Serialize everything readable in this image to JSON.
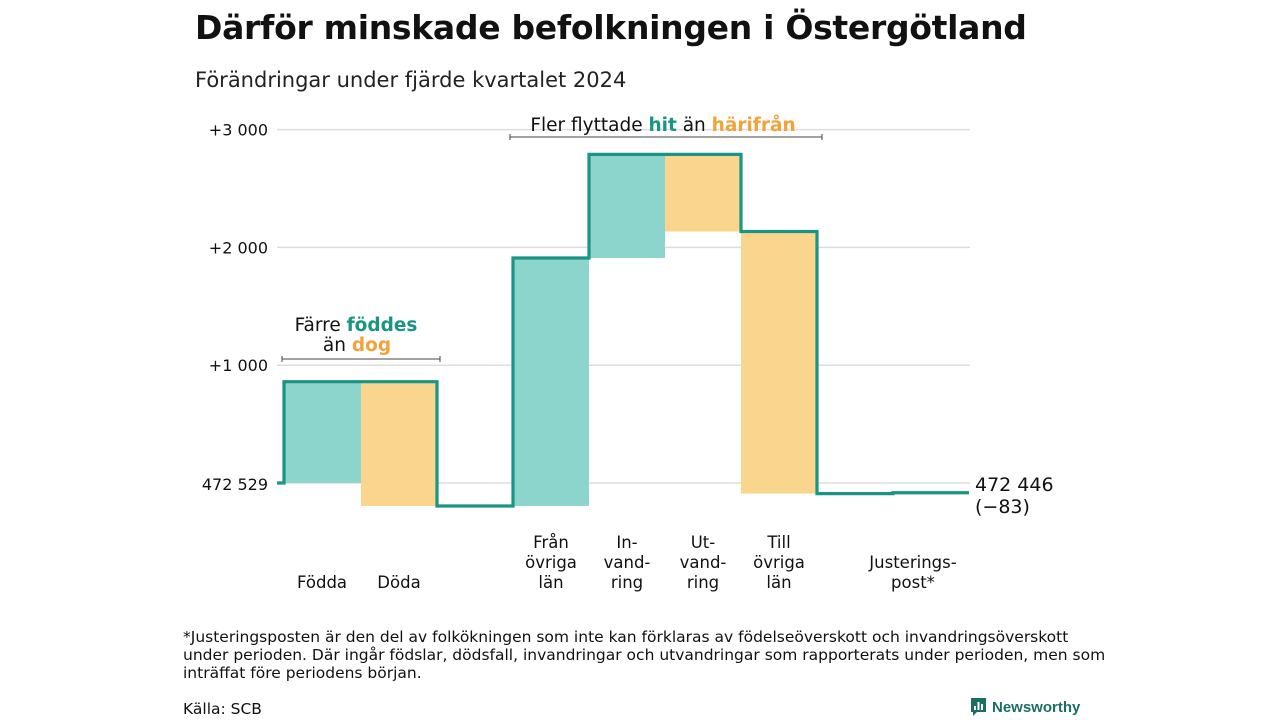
{
  "title": "Därför minskade befolkningen i Östergötland",
  "subtitle": "Förändringar under fjärde kvartalet 2024",
  "chart_data": {
    "type": "waterfall",
    "start_value": 472529,
    "start_label": "472 529",
    "end_label": "472 446",
    "end_change_label": "(−83)",
    "y_ticks": [
      {
        "value": 1000,
        "label": "+1 000"
      },
      {
        "value": 2000,
        "label": "+2 000"
      },
      {
        "value": 3000,
        "label": "+3 000"
      }
    ],
    "steps": [
      {
        "label_lines": [
          "Födda"
        ],
        "change": 860,
        "kind": "in"
      },
      {
        "label_lines": [
          "Döda"
        ],
        "change": -1055,
        "kind": "out"
      },
      {
        "label_lines": [
          "Från",
          "övriga",
          "län"
        ],
        "change": 2105,
        "kind": "in"
      },
      {
        "label_lines": [
          "In-",
          "vand-",
          "ring"
        ],
        "change": 880,
        "kind": "in"
      },
      {
        "label_lines": [
          "Ut-",
          "vand-",
          "ring"
        ],
        "change": -655,
        "kind": "out"
      },
      {
        "label_lines": [
          "Till",
          "övriga",
          "län"
        ],
        "change": -2225,
        "kind": "out"
      },
      {
        "label_lines": [
          "Justerings-",
          "post*"
        ],
        "change": 7,
        "kind": "adjust"
      }
    ],
    "annotations": [
      {
        "group": "births",
        "lines": [
          [
            {
              "text": "Färre ",
              "role": "plain"
            },
            {
              "text": "föddes",
              "role": "in"
            }
          ],
          [
            {
              "text": "än ",
              "role": "plain"
            },
            {
              "text": "dog",
              "role": "out"
            }
          ]
        ]
      },
      {
        "group": "migration",
        "lines": [
          [
            {
              "text": "Fler flyttade ",
              "role": "plain"
            },
            {
              "text": "hit",
              "role": "in"
            },
            {
              "text": "  än ",
              "role": "plain"
            },
            {
              "text": "härifrån",
              "role": "out"
            }
          ]
        ]
      }
    ],
    "colors": {
      "in": "#8cd5cc",
      "out": "#fad58e",
      "line": "#1a9484",
      "in_text": "#1a9484",
      "out_text": "#f2a33a",
      "grid": "#dddddd"
    }
  },
  "footnote": "*Justeringsposten är den del av folkökningen som inte kan förklaras av födelseöverskott och invandringsöverskott under perioden. Där ingår födslar, dödsfall, invandringar och utvandringar som rapporterats under perioden, men som inträffat före periodens början.",
  "source": "Källa: SCB",
  "brand": "Newsworthy"
}
